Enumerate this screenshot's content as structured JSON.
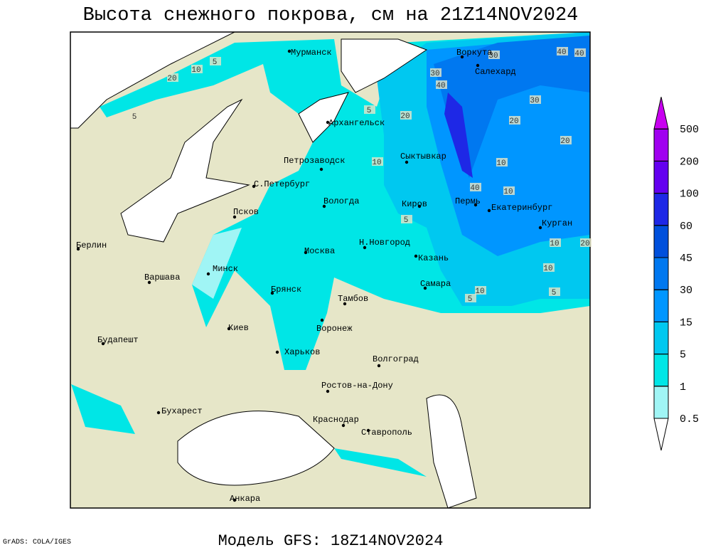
{
  "title": "Высота снежного покрова, см на 21Z14NOV2024",
  "footer": "Модель GFS: 18Z14NOV2024",
  "credit": "GrADS: COLA/IGES",
  "colorbar": {
    "levels": [
      0.5,
      1,
      5,
      15,
      30,
      45,
      60,
      100,
      200,
      500
    ],
    "colors": [
      "#ffffff",
      "#a0f5f5",
      "#00e6e6",
      "#00c8f0",
      "#0096ff",
      "#0078f0",
      "#0050dc",
      "#1e28e6",
      "#6400f0",
      "#a000f0",
      "#c800f0"
    ]
  },
  "cities": [
    "Мурманск",
    "Воркута",
    "Салехард",
    "Архангельск",
    "Петрозаводск",
    "Сыктывкар",
    "С.Петербург",
    "Вологда",
    "Киров",
    "Пермь",
    "Екатеринбург",
    "Псков",
    "Курган",
    "Берлин",
    "Н.Новгород",
    "Москва",
    "Казань",
    "Минск",
    "Варшава",
    "Самара",
    "Брянск",
    "Тамбов",
    "Киев",
    "Воронеж",
    "Будапешт",
    "Харьков",
    "Волгоград",
    "Ростов-на-Дону",
    "Бухарест",
    "Краснодар",
    "Ставрополь",
    "Анкара"
  ],
  "contour_labels": [
    5,
    10,
    20,
    5,
    5,
    20,
    30,
    40,
    30,
    40,
    40,
    30,
    20,
    20,
    10,
    10,
    10,
    40,
    5,
    10,
    20,
    10,
    5,
    10,
    5
  ]
}
